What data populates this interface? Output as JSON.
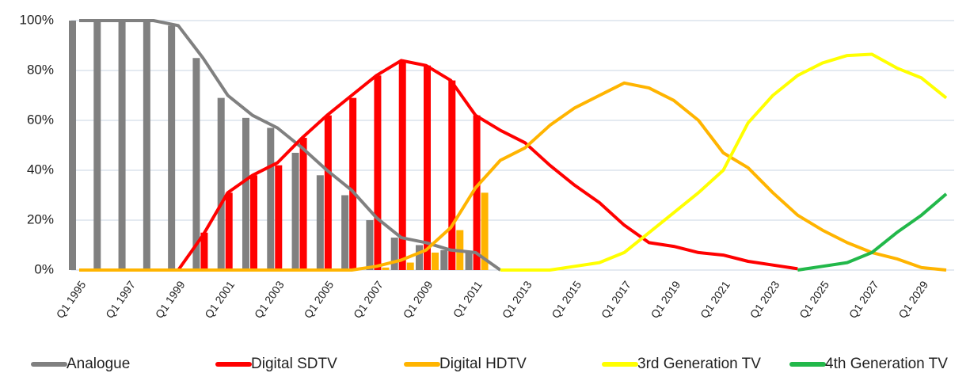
{
  "chart_data": {
    "type": "line",
    "categories": [
      "Q1 1995",
      null,
      "Q1 1997",
      null,
      "Q1 1999",
      null,
      "Q1 2001",
      null,
      "Q1 2003",
      null,
      "Q1 2005",
      null,
      "Q1 2007",
      null,
      "Q1 2009",
      null,
      "Q1 2011",
      null,
      "Q1 2013",
      null,
      "Q1 2015",
      null,
      "Q1 2017",
      null,
      "Q1 2019",
      null,
      "Q1 2021",
      null,
      "Q1 2023",
      null,
      "Q1 2025",
      null,
      "Q1 2027",
      null,
      "Q1 2029",
      null
    ],
    "ylim": [
      0,
      100
    ],
    "yticks": [
      {
        "value": 0,
        "label": "0%"
      },
      {
        "value": 20,
        "label": "20%"
      },
      {
        "value": 40,
        "label": "40%"
      },
      {
        "value": 60,
        "label": "60%"
      },
      {
        "value": 80,
        "label": "80%"
      },
      {
        "value": 100,
        "label": "100%"
      }
    ],
    "grid": true,
    "legend": "bottom",
    "series": [
      {
        "name": "Analogue",
        "color": "#808080",
        "values": [
          100,
          100,
          100,
          100,
          98,
          85,
          70,
          62,
          57,
          49,
          40,
          32,
          21,
          13,
          11,
          8,
          7,
          0,
          null,
          null,
          null,
          null,
          null,
          null,
          null,
          null,
          null,
          null,
          null,
          null,
          null,
          null,
          null,
          null,
          null,
          null
        ],
        "bars": [
          100,
          100,
          100,
          100,
          98,
          85,
          69,
          61,
          57,
          47,
          38,
          30,
          20,
          13,
          10,
          8,
          7,
          null,
          null,
          null,
          null,
          null,
          null,
          null,
          null,
          null,
          null,
          null,
          null,
          null,
          null,
          null,
          null,
          null,
          null,
          null
        ]
      },
      {
        "name": "Digital SDTV",
        "color": "#ff0000",
        "values": [
          null,
          null,
          null,
          null,
          0,
          14,
          31,
          38,
          43,
          53,
          62,
          70,
          78,
          84,
          82,
          76,
          62,
          56,
          51,
          42,
          34,
          27,
          18,
          11,
          9.5,
          7,
          6,
          3.5,
          2,
          0.5,
          null,
          null,
          null,
          null,
          null,
          null
        ],
        "bars": [
          null,
          null,
          null,
          null,
          null,
          15,
          31,
          38,
          42,
          53,
          62,
          69,
          78,
          84,
          82,
          76,
          62,
          null,
          null,
          null,
          null,
          null,
          null,
          null,
          null,
          null,
          null,
          null,
          null,
          null,
          null,
          null,
          null,
          null,
          null,
          null
        ]
      },
      {
        "name": "Digital HDTV",
        "color": "#ffb400",
        "values": [
          0,
          0,
          0,
          0,
          0,
          0,
          0,
          0,
          0,
          0,
          0,
          0,
          1.5,
          4,
          8,
          17,
          33,
          44,
          49,
          58,
          65,
          70,
          75,
          73,
          68,
          60,
          47,
          41,
          31,
          22,
          16,
          11,
          7,
          4.5,
          1,
          0
        ],
        "bars": [
          null,
          null,
          null,
          null,
          null,
          null,
          null,
          null,
          null,
          null,
          null,
          null,
          1,
          3,
          7,
          16,
          31,
          null,
          null,
          null,
          null,
          null,
          null,
          null,
          null,
          null,
          null,
          null,
          null,
          null,
          null,
          null,
          null,
          null,
          null,
          null
        ]
      },
      {
        "name": "3rd Generation TV",
        "color": "#ffff00",
        "values": [
          null,
          null,
          null,
          null,
          null,
          null,
          null,
          null,
          null,
          null,
          null,
          null,
          null,
          null,
          null,
          null,
          null,
          0,
          0,
          0,
          1.5,
          3,
          7,
          15,
          23,
          31,
          40,
          59,
          70,
          78,
          83,
          86,
          86.5,
          81,
          77,
          69
        ]
      },
      {
        "name": "4th Generation TV",
        "color": "#22b84a",
        "values": [
          null,
          null,
          null,
          null,
          null,
          null,
          null,
          null,
          null,
          null,
          null,
          null,
          null,
          null,
          null,
          null,
          null,
          null,
          null,
          null,
          null,
          null,
          null,
          null,
          null,
          null,
          null,
          null,
          null,
          0,
          1.5,
          3,
          7,
          15,
          22,
          30.5
        ]
      }
    ]
  }
}
